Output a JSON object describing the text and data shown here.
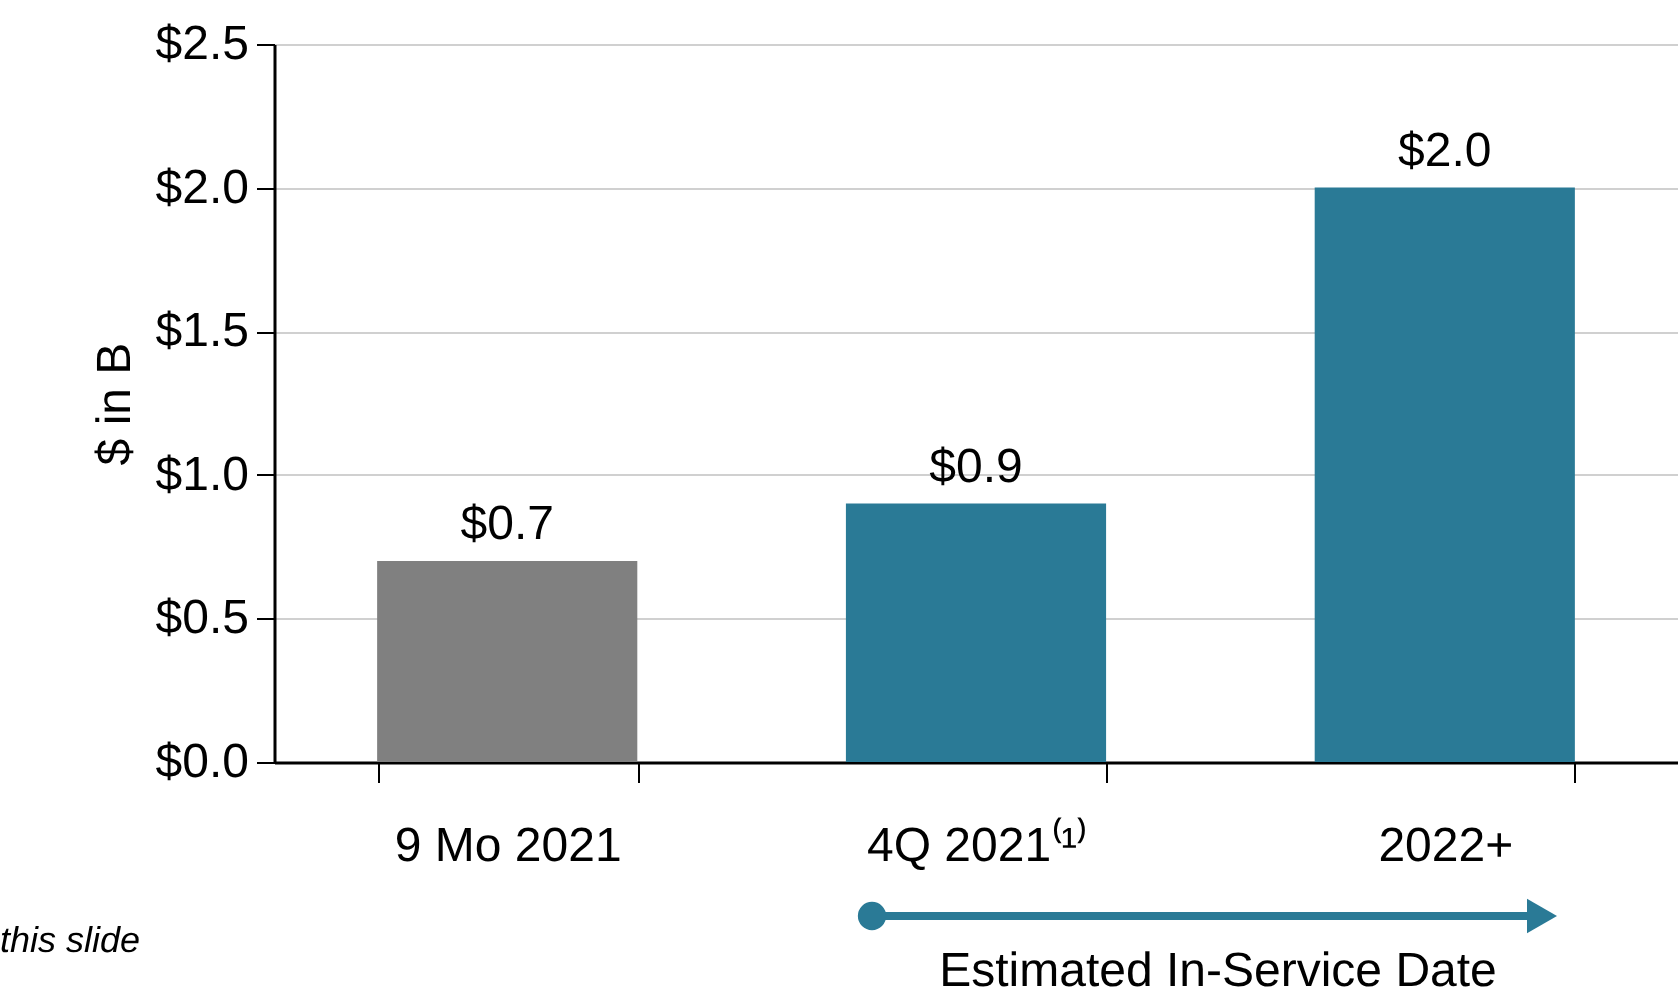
{
  "chart_data": {
    "type": "bar",
    "ylabel": "$ in B",
    "categories": [
      "9 Mo 2021",
      "4Q 2021⁽¹⁾",
      "2022+"
    ],
    "values": [
      0.7,
      0.9,
      2.0
    ],
    "colors": [
      "#808080",
      "#2a7a96",
      "#2a7a96"
    ],
    "value_labels": [
      "$0.7",
      "$0.9",
      "$2.0"
    ],
    "ylim": [
      0,
      2.5
    ],
    "yticks": [
      {
        "value": 0,
        "label": "$0.0"
      },
      {
        "value": 0.5,
        "label": "$0.5"
      },
      {
        "value": 1.0,
        "label": "$1.0"
      },
      {
        "value": 1.5,
        "label": "$1.5"
      },
      {
        "value": 2.0,
        "label": "$2.0"
      },
      {
        "value": 2.5,
        "label": "$2.5"
      }
    ],
    "grid": "y",
    "annotations": [
      "this slide",
      "Estimated In-Service Date"
    ]
  }
}
